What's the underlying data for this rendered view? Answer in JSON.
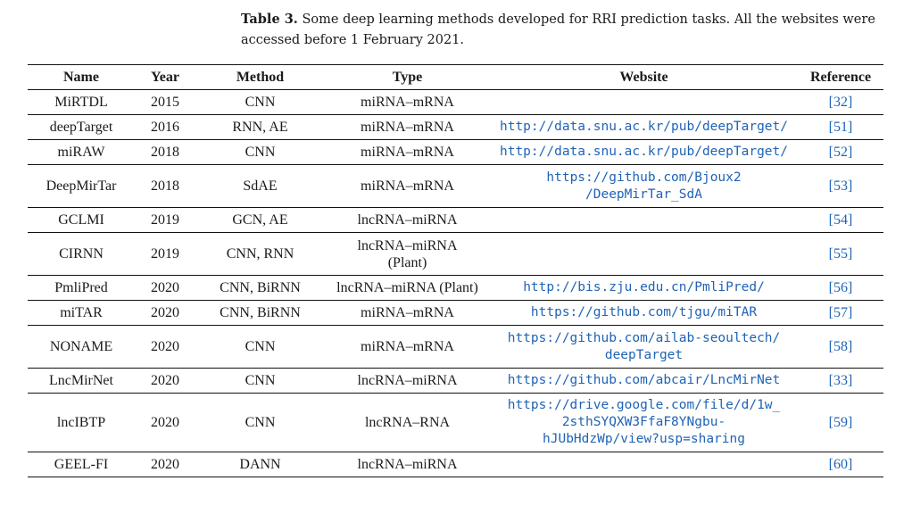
{
  "caption": {
    "label": "Table 3.",
    "text": "Some deep learning methods developed for RRI prediction tasks.  All the websites were accessed before 1 February 2021."
  },
  "headers": [
    "Name",
    "Year",
    "Method",
    "Type",
    "Website",
    "Reference"
  ],
  "rows": [
    {
      "name": "MiRTDL",
      "year": "2015",
      "method": "CNN",
      "type_lines": [
        "miRNA–mRNA"
      ],
      "website_lines": [],
      "ref": "[32]"
    },
    {
      "name": "deepTarget",
      "year": "2016",
      "method": "RNN, AE",
      "type_lines": [
        "miRNA–mRNA"
      ],
      "website_lines": [
        "http://data.snu.ac.kr/pub/deepTarget/"
      ],
      "ref": "[51]"
    },
    {
      "name": "miRAW",
      "year": "2018",
      "method": "CNN",
      "type_lines": [
        "miRNA–mRNA"
      ],
      "website_lines": [
        "http://data.snu.ac.kr/pub/deepTarget/"
      ],
      "ref": "[52]"
    },
    {
      "name": "DeepMirTar",
      "year": "2018",
      "method": "SdAE",
      "type_lines": [
        "miRNA–mRNA"
      ],
      "website_lines": [
        "https://github.com/Bjoux2",
        "/DeepMirTar_SdA"
      ],
      "ref": "[53]"
    },
    {
      "name": "GCLMI",
      "year": "2019",
      "method": "GCN, AE",
      "type_lines": [
        "lncRNA–miRNA"
      ],
      "website_lines": [],
      "ref": "[54]"
    },
    {
      "name": "CIRNN",
      "year": "2019",
      "method": "CNN, RNN",
      "type_lines": [
        "lncRNA–miRNA",
        "(Plant)"
      ],
      "website_lines": [],
      "ref": "[55]"
    },
    {
      "name": "PmliPred",
      "year": "2020",
      "method": "CNN, BiRNN",
      "type_lines": [
        "lncRNA–miRNA (Plant)"
      ],
      "website_lines": [
        "http://bis.zju.edu.cn/PmliPred/"
      ],
      "ref": "[56]"
    },
    {
      "name": "miTAR",
      "year": "2020",
      "method": "CNN, BiRNN",
      "type_lines": [
        "miRNA–mRNA"
      ],
      "website_lines": [
        "https://github.com/tjgu/miTAR"
      ],
      "ref": "[57]"
    },
    {
      "name": "NONAME",
      "year": "2020",
      "method": "CNN",
      "type_lines": [
        "miRNA–mRNA"
      ],
      "website_lines": [
        "https://github.com/ailab-seoultech/",
        "deepTarget"
      ],
      "ref": "[58]"
    },
    {
      "name": "LncMirNet",
      "year": "2020",
      "method": "CNN",
      "type_lines": [
        "lncRNA–miRNA"
      ],
      "website_lines": [
        "https://github.com/abcair/LncMirNet"
      ],
      "ref": "[33]"
    },
    {
      "name": "lncIBTP",
      "year": "2020",
      "method": "CNN",
      "type_lines": [
        "lncRNA–RNA"
      ],
      "website_lines": [
        "https://drive.google.com/file/d/1w_",
        "2sthSYQXW3FfaF8YNgbu-",
        "hJUbHdzWp/view?usp=sharing"
      ],
      "ref": "[59]"
    },
    {
      "name": "GEEL-FI",
      "year": "2020",
      "method": "DANN",
      "type_lines": [
        "lncRNA–miRNA"
      ],
      "website_lines": [],
      "ref": "[60]"
    }
  ]
}
